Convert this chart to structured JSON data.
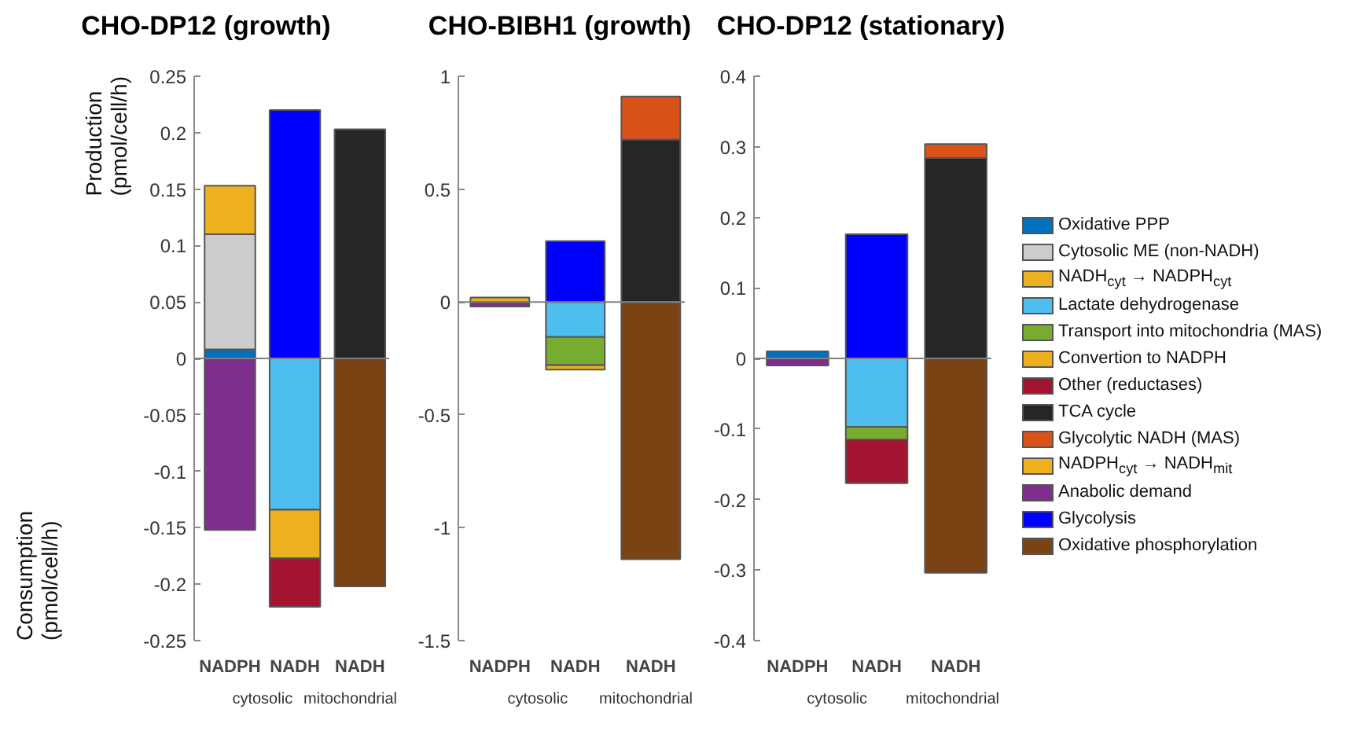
{
  "chart_data": [
    {
      "type": "bar",
      "stacked": true,
      "title": "CHO-DP12 (growth)",
      "ylabel": "Production (pmol/cell/h)",
      "categories": [
        "NADPH",
        "NADH",
        "NADH"
      ],
      "ylim": [
        -0.25,
        0.25
      ],
      "yticks": [
        -0.25,
        -0.2,
        -0.15,
        -0.1,
        -0.05,
        0,
        0.05,
        0.1,
        0.15,
        0.2,
        0.25
      ],
      "grid": false,
      "legend": false,
      "annotations": [
        "Consumption (pmol/cell/h)",
        "cytosolic",
        "mitochondrial"
      ],
      "ref_lines": [
        {
          "axis": "y",
          "value": 0,
          "color": "#808080"
        }
      ],
      "series": [
        {
          "color": "#0072bd",
          "values": [
            0.008,
            null,
            null
          ]
        },
        {
          "color": "#cccccc",
          "values": [
            0.102,
            null,
            null
          ]
        },
        {
          "color": "#edb120",
          "values": [
            0.043,
            null,
            null
          ]
        },
        {
          "color": "#4dbeee",
          "values": [
            null,
            -0.134,
            null
          ]
        },
        {
          "color": "#edb120",
          "values": [
            null,
            -0.043,
            null
          ]
        },
        {
          "color": "#a2142f",
          "values": [
            null,
            -0.043,
            null
          ]
        },
        {
          "color": "#262626",
          "values": [
            null,
            null,
            0.203
          ]
        },
        {
          "color": "#7e2f8e",
          "values": [
            -0.152,
            null,
            null
          ]
        },
        {
          "color": "#0000ff",
          "values": [
            null,
            0.22,
            null
          ]
        },
        {
          "color": "#7a4314",
          "values": [
            null,
            null,
            -0.202
          ]
        }
      ]
    },
    {
      "type": "bar",
      "stacked": true,
      "title": "CHO-BIBH1 (growth)",
      "categories": [
        "NADPH",
        "NADH",
        "NADH"
      ],
      "ylim": [
        -1.5,
        1
      ],
      "yticks": [
        -1.5,
        -1,
        -0.5,
        0,
        0.5,
        1
      ],
      "grid": false,
      "legend": false,
      "annotations": [
        "cytosolic",
        "mitochondrial"
      ],
      "ref_lines": [
        {
          "axis": "y",
          "value": 0,
          "color": "#808080"
        }
      ],
      "series": [
        {
          "color": "#edb120",
          "values": [
            0.02,
            null,
            null
          ]
        },
        {
          "color": "#4dbeee",
          "values": [
            null,
            -0.155,
            null
          ]
        },
        {
          "color": "#77ac30",
          "values": [
            null,
            -0.125,
            null
          ]
        },
        {
          "color": "#edb120",
          "values": [
            null,
            -0.02,
            null
          ]
        },
        {
          "color": "#262626",
          "values": [
            null,
            null,
            0.72
          ]
        },
        {
          "color": "#d95319",
          "values": [
            null,
            null,
            0.19
          ]
        },
        {
          "color": "#7e2f8e",
          "values": [
            -0.02,
            null,
            null
          ]
        },
        {
          "color": "#0000ff",
          "values": [
            null,
            0.27,
            null
          ]
        },
        {
          "color": "#7a4314",
          "values": [
            null,
            null,
            -1.14
          ]
        }
      ]
    },
    {
      "type": "bar",
      "stacked": true,
      "title": "CHO-DP12 (stationary)",
      "categories": [
        "NADPH",
        "NADH",
        "NADH"
      ],
      "ylim": [
        -0.4,
        0.4
      ],
      "yticks": [
        -0.4,
        -0.3,
        -0.2,
        -0.1,
        0,
        0.1,
        0.2,
        0.3,
        0.4
      ],
      "grid": false,
      "legend": "right",
      "annotations": [
        "cytosolic",
        "mitochondrial"
      ],
      "ref_lines": [
        {
          "axis": "y",
          "value": 0,
          "color": "#808080"
        }
      ],
      "series": [
        {
          "name": "Oxidative PPP",
          "color": "#0072bd",
          "values": [
            0.01,
            null,
            null
          ]
        },
        {
          "name": "Cytosolic ME (non-NADH)",
          "color": "#cccccc",
          "values": [
            null,
            null,
            null
          ]
        },
        {
          "name": "NADH$_{cyt}$ → NADPH$_{cyt}$",
          "color": "#edb120",
          "values": [
            null,
            null,
            null
          ]
        },
        {
          "name": "Lactate dehydrogenase",
          "color": "#4dbeee",
          "values": [
            null,
            -0.097,
            null
          ]
        },
        {
          "name": "Transport into mitochondria (MAS)",
          "color": "#77ac30",
          "values": [
            null,
            -0.018,
            null
          ]
        },
        {
          "name": "Convertion to NADPH",
          "color": "#edb120",
          "values": [
            null,
            null,
            null
          ]
        },
        {
          "name": "Other (reductases)",
          "color": "#a2142f",
          "values": [
            null,
            -0.062,
            null
          ]
        },
        {
          "name": "TCA cycle",
          "color": "#262626",
          "values": [
            null,
            null,
            0.284
          ]
        },
        {
          "name": "Glycolytic NADH (MAS)",
          "color": "#d95319",
          "values": [
            null,
            null,
            0.02
          ]
        },
        {
          "name": "NADPH$_{cyt}$ → NADH$_{mit}$",
          "color": "#edb120",
          "values": [
            null,
            null,
            null
          ]
        },
        {
          "name": "Anabolic demand",
          "color": "#7e2f8e",
          "values": [
            -0.01,
            null,
            null
          ]
        },
        {
          "name": "Glycolysis",
          "color": "#0000ff",
          "values": [
            null,
            0.176,
            null
          ]
        },
        {
          "name": "Oxidative phosphorylation",
          "color": "#7a4314",
          "values": [
            null,
            null,
            -0.304
          ]
        }
      ]
    }
  ]
}
